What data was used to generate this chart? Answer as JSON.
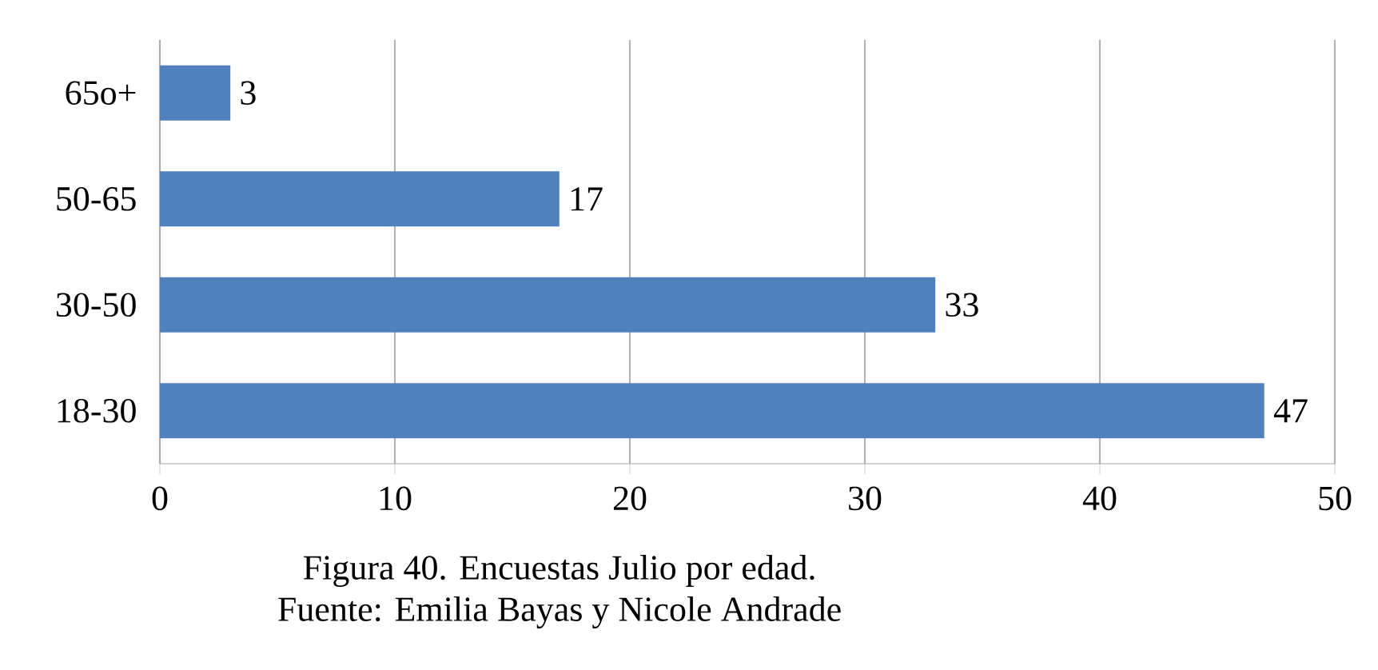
{
  "chart_data": {
    "type": "bar",
    "orientation": "horizontal",
    "categories": [
      "65o+",
      "50-65",
      "30-50",
      "18-30"
    ],
    "values": [
      3,
      17,
      33,
      47
    ],
    "color": "#4f81bd",
    "xlim": [
      0,
      50
    ],
    "xticks": [
      0,
      10,
      20,
      30,
      40,
      50
    ],
    "grid": "x",
    "data_labels": true,
    "annotations": [
      "Figura 40. Encuestas Julio por edad.",
      "Fuente: Emilia Bayas y Nicole Andrade"
    ]
  }
}
